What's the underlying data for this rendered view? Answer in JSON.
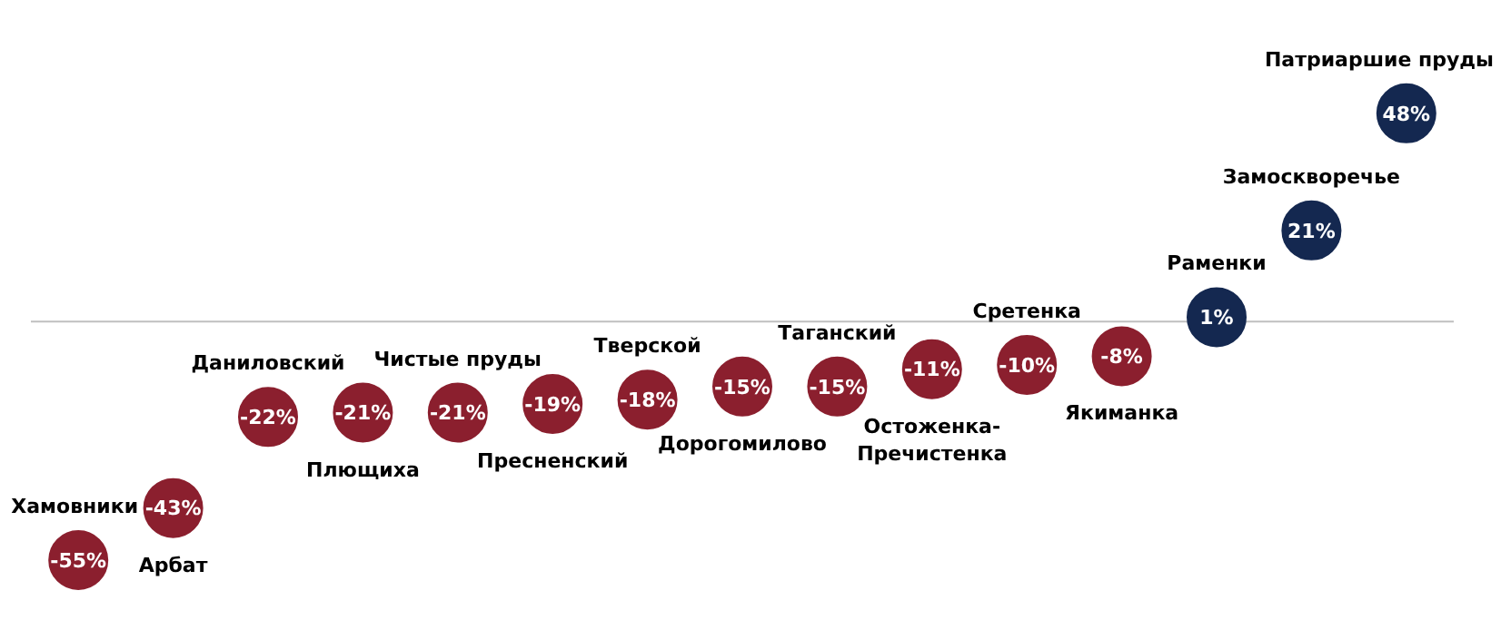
{
  "chart_data": {
    "type": "scatter",
    "categories": [
      "Хамовники",
      "Арбат",
      "Даниловский",
      "Плющиха",
      "Чистые пруды",
      "Пресненский",
      "Тверской",
      "Дорогомилово",
      "Таганский",
      "Остоженка-\nПречистенка",
      "Сретенка",
      "Якиманка",
      "Раменки",
      "Замоскворечье",
      "Патриаршие пруды"
    ],
    "values": [
      -55,
      -43,
      -22,
      -21,
      -21,
      -19,
      -18,
      -15,
      -15,
      -11,
      -10,
      -8,
      1,
      21,
      48
    ],
    "value_labels": [
      "-55%",
      "-43%",
      "-22%",
      "-21%",
      "-21%",
      "-19%",
      "-18%",
      "-15%",
      "-15%",
      "-11%",
      "-10%",
      "-8%",
      "1%",
      "21%",
      "48%"
    ],
    "colors": [
      "#8b1f2e",
      "#8b1f2e",
      "#8b1f2e",
      "#8b1f2e",
      "#8b1f2e",
      "#8b1f2e",
      "#8b1f2e",
      "#8b1f2e",
      "#8b1f2e",
      "#8b1f2e",
      "#8b1f2e",
      "#8b1f2e",
      "#142850",
      "#142850",
      "#142850"
    ],
    "ref_lines": [
      {
        "axis": "y",
        "value": 0,
        "color": "#bfbfbf"
      }
    ],
    "legend": false,
    "marker": "circle"
  }
}
